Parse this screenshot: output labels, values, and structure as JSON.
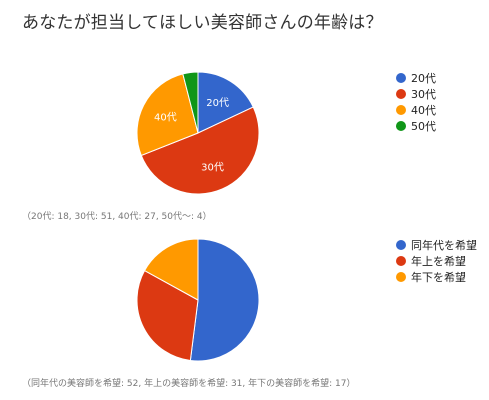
{
  "title": "あなたが担当してほしい美容師さんの年齢は？",
  "colors": {
    "blue": "#3366cc",
    "red": "#dc3912",
    "orange": "#ff9900",
    "green": "#109618"
  },
  "chart_data": [
    {
      "type": "pie",
      "categories": [
        "20代",
        "30代",
        "40代",
        "50代"
      ],
      "values": [
        18,
        51,
        27,
        4
      ],
      "colors": [
        "#3366cc",
        "#dc3912",
        "#ff9900",
        "#109618"
      ],
      "slice_labels": [
        "20代",
        "30代",
        "40代",
        ""
      ],
      "legend": [
        "20代",
        "30代",
        "40代",
        "50代"
      ],
      "legend_position": "right",
      "note": "（20代: 18, 30代: 51, 40代: 27, 50代〜: 4）"
    },
    {
      "type": "pie",
      "categories": [
        "同年代を希望",
        "年上を希望",
        "年下を希望"
      ],
      "values": [
        52,
        31,
        17
      ],
      "colors": [
        "#3366cc",
        "#dc3912",
        "#ff9900"
      ],
      "slice_labels": [
        "",
        "",
        ""
      ],
      "legend": [
        "同年代を希望",
        "年上を希望",
        "年下を希望"
      ],
      "legend_position": "right",
      "note": "（同年代の美容師を希望: 52, 年上の美容師を希望: 31, 年下の美容師を希望: 17）"
    }
  ]
}
